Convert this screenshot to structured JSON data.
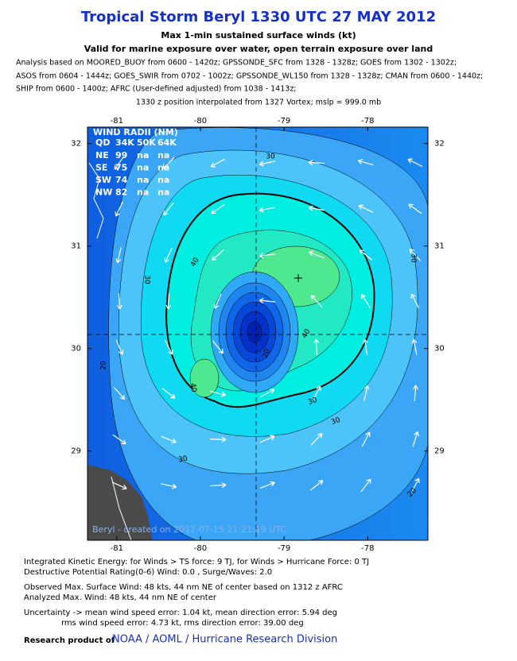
{
  "header": {
    "title": "Tropical Storm Beryl 1330 UTC 27 MAY 2012",
    "subtitle": "Max 1-min sustained surface winds (kt)",
    "subtitle2": "Valid for marine exposure over water, open terrain exposure over land"
  },
  "analysis_lines": [
    "Analysis based on MOORED_BUOY from 0600 - 1420z; GPSSONDE_SFC from 1328 - 1328z; GOES from 1302 - 1302z;",
    "ASOS from 0604 - 1444z; GOES_SWIR from 0702 - 1002z; GPSSONDE_WL150 from 1328 - 1328z; CMAN from 0600 - 1440z;",
    "SHIP from 0600 - 1400z; AFRC (User-defined adjusted) from 1038 - 1413z;"
  ],
  "position_note": "1330 z position interpolated from 1327 Vortex; mslp = 999.0 mb",
  "map": {
    "xlim": [
      -81.35,
      -77.28
    ],
    "ylim": [
      28.13,
      32.16
    ],
    "xticks": [
      -81,
      -80,
      -79,
      -78
    ],
    "yticks": [
      32,
      31,
      30,
      29
    ],
    "wind_radii": {
      "title": "WIND RADII (NM)",
      "header": [
        "QD",
        "34K",
        "50K",
        "64K"
      ],
      "rows": [
        [
          "NE",
          99,
          "na",
          "na"
        ],
        [
          "SE",
          75,
          "na",
          "na"
        ],
        [
          "SW",
          74,
          "na",
          "na"
        ],
        [
          "NW",
          82,
          "na",
          "na"
        ]
      ]
    },
    "contour_labels": [
      "30",
      "30",
      "30",
      "40",
      "40",
      "40",
      "20",
      "20",
      "30",
      "30",
      "30",
      "20"
    ],
    "credit": "Beryl - created on 2012-07-15 21:21:19 UTC"
  },
  "footer": {
    "lines": [
      "Integrated Kinetic Energy: for Winds > TS force: 9 TJ, for Winds > Hurricane Force: 0 TJ",
      "Destructive Potential Rating(0-6)  Wind: 0.0 , Surge/Waves: 2.0",
      "Observed Max. Surface Wind: 48 kts, 44 nm NE of center based on 1312 z AFRC",
      "Analyzed Max. Wind: 48 kts, 44 nm  NE of center",
      "Uncertainty -> mean wind speed error: 1.04 kt, mean direction error: 5.94 deg",
      "rms wind speed error: 4.73 kt, rms direction error: 39.00 deg"
    ],
    "research": "Research product of",
    "org": "NOAA / AOML / Hurricane Research Division"
  }
}
